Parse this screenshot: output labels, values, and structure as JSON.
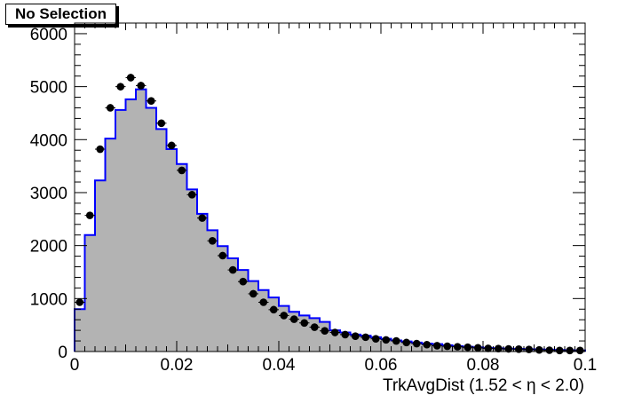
{
  "title": "No Selection",
  "chart_data": {
    "type": "histogram",
    "xlabel": "TrkAvgDist (1.52 <  η < 2.0)",
    "ylabel": "",
    "xlim": [
      0,
      0.1
    ],
    "ylim": [
      0,
      6200
    ],
    "x_ticks": [
      0,
      0.02,
      0.04,
      0.06,
      0.08,
      0.1
    ],
    "x_tick_labels": [
      "0",
      "0.02",
      "0.04",
      "0.06",
      "0.08",
      "0.1"
    ],
    "y_ticks": [
      0,
      1000,
      2000,
      3000,
      4000,
      5000,
      6000
    ],
    "y_tick_labels": [
      "0",
      "1000",
      "2000",
      "3000",
      "4000",
      "5000",
      "6000"
    ],
    "grid": false,
    "bin_width": 0.002,
    "bin_centers": [
      0.001,
      0.003,
      0.005,
      0.007,
      0.009,
      0.011,
      0.013,
      0.015,
      0.017,
      0.019,
      0.021,
      0.023,
      0.025,
      0.027,
      0.029,
      0.031,
      0.033,
      0.035,
      0.037,
      0.039,
      0.041,
      0.043,
      0.045,
      0.047,
      0.049,
      0.051,
      0.053,
      0.055,
      0.057,
      0.059,
      0.061,
      0.063,
      0.065,
      0.067,
      0.069,
      0.071,
      0.073,
      0.075,
      0.077,
      0.079,
      0.081,
      0.083,
      0.085,
      0.087,
      0.089,
      0.091,
      0.093,
      0.095,
      0.097,
      0.099
    ],
    "series": [
      {
        "name": "",
        "style": "filled-histogram",
        "fill": "#b3b3b3",
        "line": "#0000ff",
        "values": [
          800,
          2200,
          3230,
          4020,
          4560,
          4760,
          4950,
          4600,
          4200,
          3820,
          3540,
          3060,
          2600,
          2290,
          1990,
          1760,
          1540,
          1330,
          1160,
          1020,
          860,
          750,
          680,
          630,
          560,
          400,
          360,
          320,
          300,
          270,
          240,
          210,
          190,
          170,
          150,
          140,
          120,
          100,
          90,
          80,
          70,
          60,
          55,
          50,
          45,
          40,
          35,
          30,
          25,
          20
        ]
      },
      {
        "name": "",
        "style": "markers",
        "color": "#000000",
        "values": [
          930,
          2570,
          3820,
          4600,
          5000,
          5170,
          5020,
          4730,
          4310,
          3890,
          3420,
          2960,
          2520,
          2090,
          1810,
          1540,
          1320,
          1090,
          930,
          790,
          680,
          610,
          540,
          460,
          390,
          360,
          320,
          290,
          270,
          240,
          220,
          200,
          170,
          150,
          130,
          110,
          100,
          90,
          80,
          70,
          60,
          55,
          50,
          45,
          40,
          30,
          25,
          20,
          20,
          20
        ]
      }
    ]
  }
}
